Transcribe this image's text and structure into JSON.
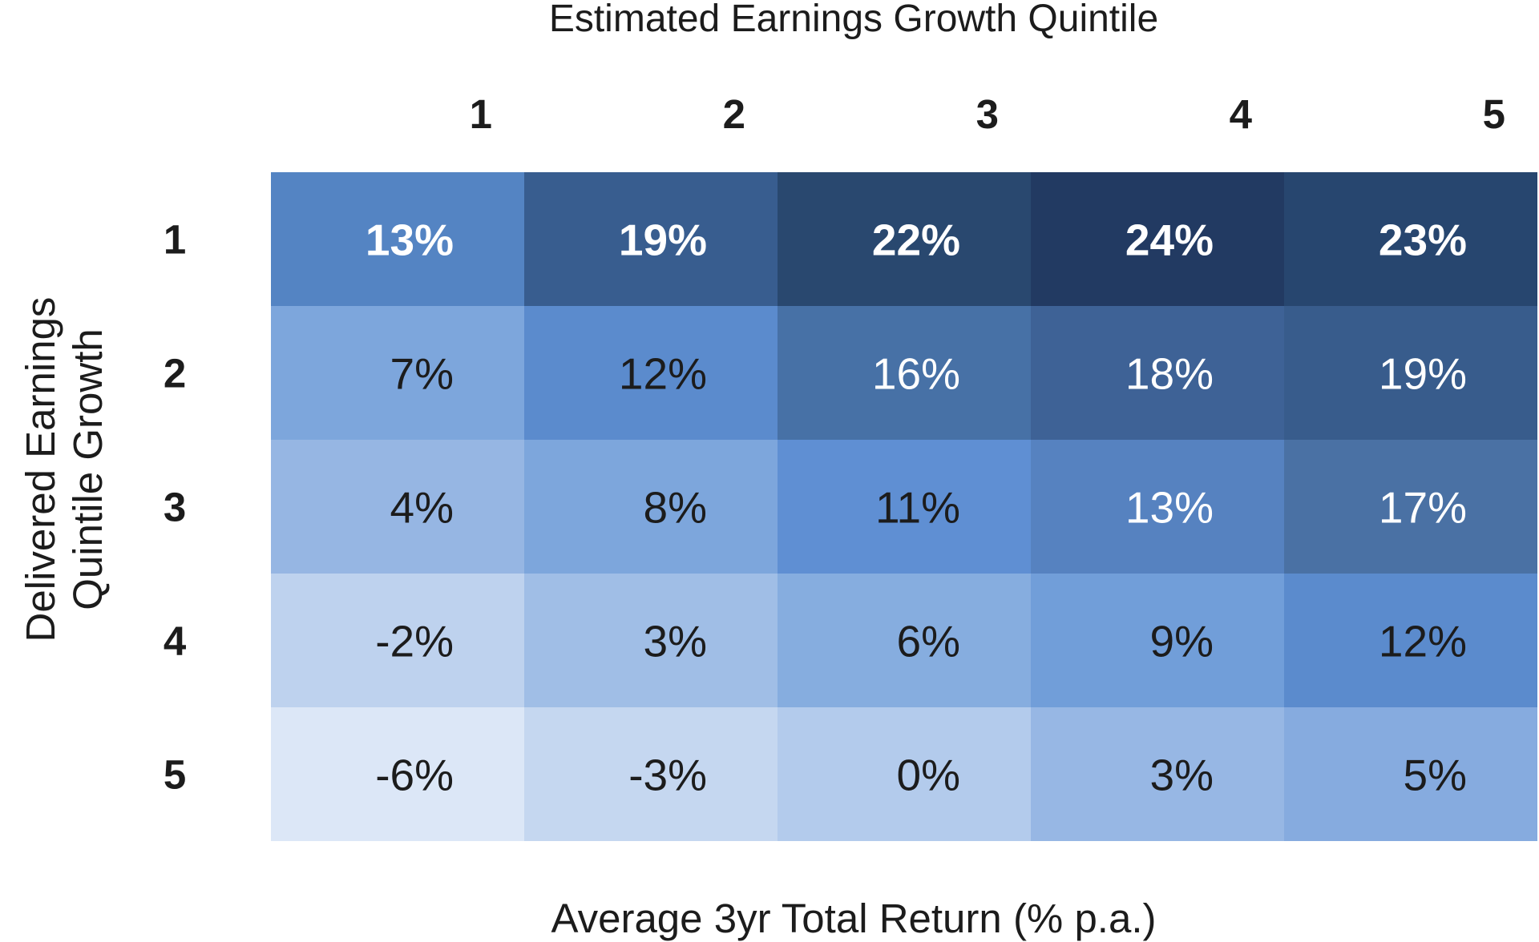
{
  "chart_data": {
    "type": "heatmap",
    "title": "Estimated Earnings Growth Quintile",
    "xlabel": "Estimated Earnings Growth Quintile",
    "ylabel": "Delivered Earnings Quintile Growth",
    "caption": "Average 3yr Total Return (% p.a.)",
    "columns": [
      "1",
      "2",
      "3",
      "4",
      "5"
    ],
    "rows": [
      "1",
      "2",
      "3",
      "4",
      "5"
    ],
    "values": [
      [
        13,
        19,
        22,
        24,
        23
      ],
      [
        7,
        12,
        16,
        18,
        19
      ],
      [
        4,
        8,
        11,
        13,
        17
      ],
      [
        -2,
        3,
        6,
        9,
        12
      ],
      [
        -6,
        -3,
        0,
        3,
        5
      ]
    ],
    "value_labels": [
      [
        "13%",
        "19%",
        "22%",
        "24%",
        "23%"
      ],
      [
        "7%",
        "12%",
        "16%",
        "18%",
        "19%"
      ],
      [
        "4%",
        "8%",
        "11%",
        "13%",
        "17%"
      ],
      [
        "-2%",
        "3%",
        "6%",
        "9%",
        "12%"
      ],
      [
        "-6%",
        "-3%",
        "0%",
        "3%",
        "5%"
      ]
    ],
    "bold_rows": [
      0
    ],
    "cell_colors": [
      [
        "#5484c3",
        "#385d8f",
        "#29486f",
        "#223a62",
        "#27466f"
      ],
      [
        "#7da6dc",
        "#5b8bcd",
        "#4771a6",
        "#3e6296",
        "#385c8c"
      ],
      [
        "#96b6e3",
        "#7da6dc",
        "#5f8fd3",
        "#5682c0",
        "#4a71a4"
      ],
      [
        "#bed2ee",
        "#a0bee6",
        "#86addf",
        "#719ed9",
        "#5b8bcd"
      ],
      [
        "#dce7f7",
        "#c5d7f0",
        "#b3cbec",
        "#97b7e4",
        "#86abdf"
      ]
    ],
    "text_colors": [
      [
        "#ffffff",
        "#ffffff",
        "#ffffff",
        "#ffffff",
        "#ffffff"
      ],
      [
        "#1c1c1c",
        "#1c1c1c",
        "#ffffff",
        "#ffffff",
        "#ffffff"
      ],
      [
        "#1c1c1c",
        "#1c1c1c",
        "#1c1c1c",
        "#ffffff",
        "#ffffff"
      ],
      [
        "#1c1c1c",
        "#1c1c1c",
        "#1c1c1c",
        "#1c1c1c",
        "#1c1c1c"
      ],
      [
        "#1c1c1c",
        "#1c1c1c",
        "#1c1c1c",
        "#1c1c1c",
        "#1c1c1c"
      ]
    ],
    "legend": "none",
    "grid": false
  }
}
